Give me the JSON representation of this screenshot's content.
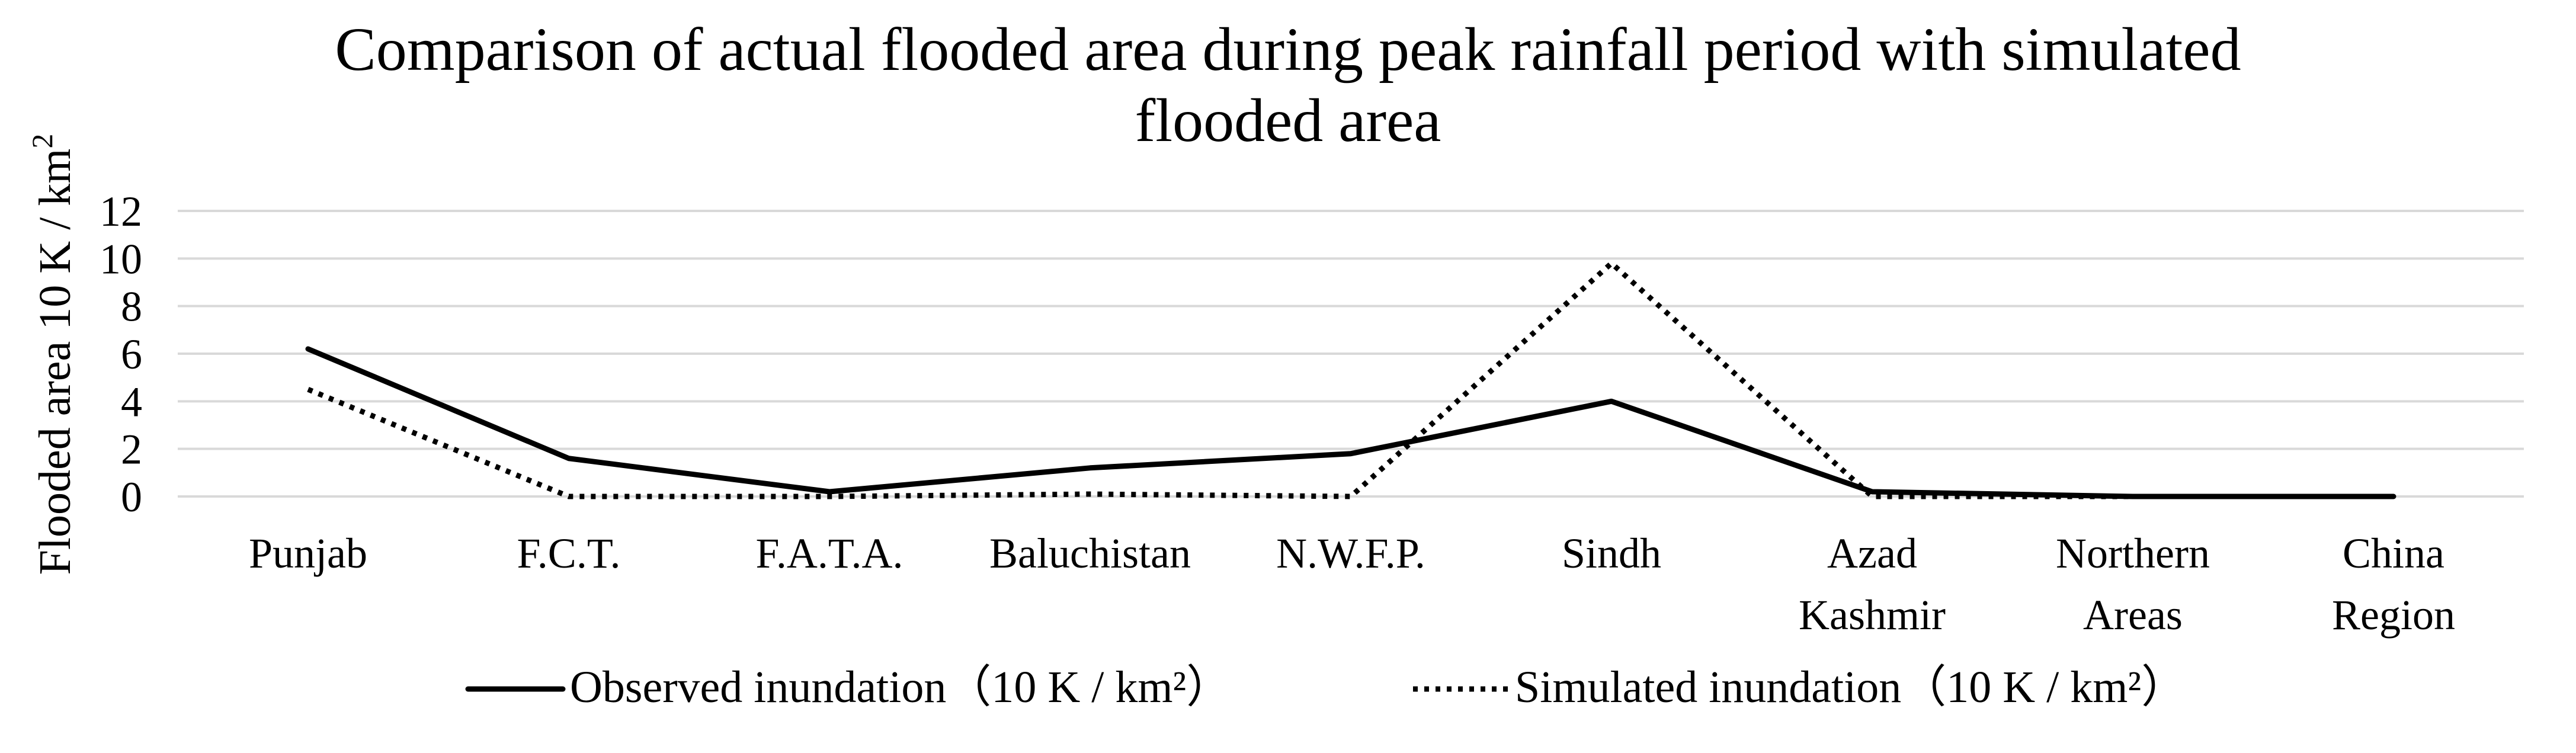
{
  "chart_data": {
    "type": "line",
    "title_lines": [
      "Comparison of actual flooded area during peak rainfall period with simulated",
      "flooded area"
    ],
    "ylabel": "Flooded area 10 K / km",
    "ylabel_superscript": "2",
    "xlabel": "",
    "ylim": [
      0,
      12
    ],
    "yticks": [
      "0",
      "2",
      "4",
      "6",
      "8",
      "10",
      "12"
    ],
    "grid": true,
    "legend_position": "bottom",
    "categories": [
      [
        "Punjab"
      ],
      [
        "F.C.T."
      ],
      [
        "F.A.T.A."
      ],
      [
        "Baluchistan"
      ],
      [
        "N.W.F.P."
      ],
      [
        "Sindh"
      ],
      [
        "Azad",
        "Kashmir"
      ],
      [
        "Northern",
        "Areas"
      ],
      [
        "China",
        "Region"
      ]
    ],
    "series": [
      {
        "name": "Observed inundation（10 K / km²）",
        "style": "solid",
        "color": "#000000",
        "values": [
          6.2,
          1.6,
          0.2,
          1.2,
          1.8,
          4.0,
          0.2,
          0.0,
          0.0
        ]
      },
      {
        "name": "Simulated inundation（10 K / km²）",
        "style": "dotted",
        "color": "#000000",
        "values": [
          4.5,
          0.0,
          0.0,
          0.1,
          0.0,
          9.8,
          0.0,
          0.0,
          0.0
        ]
      }
    ]
  }
}
